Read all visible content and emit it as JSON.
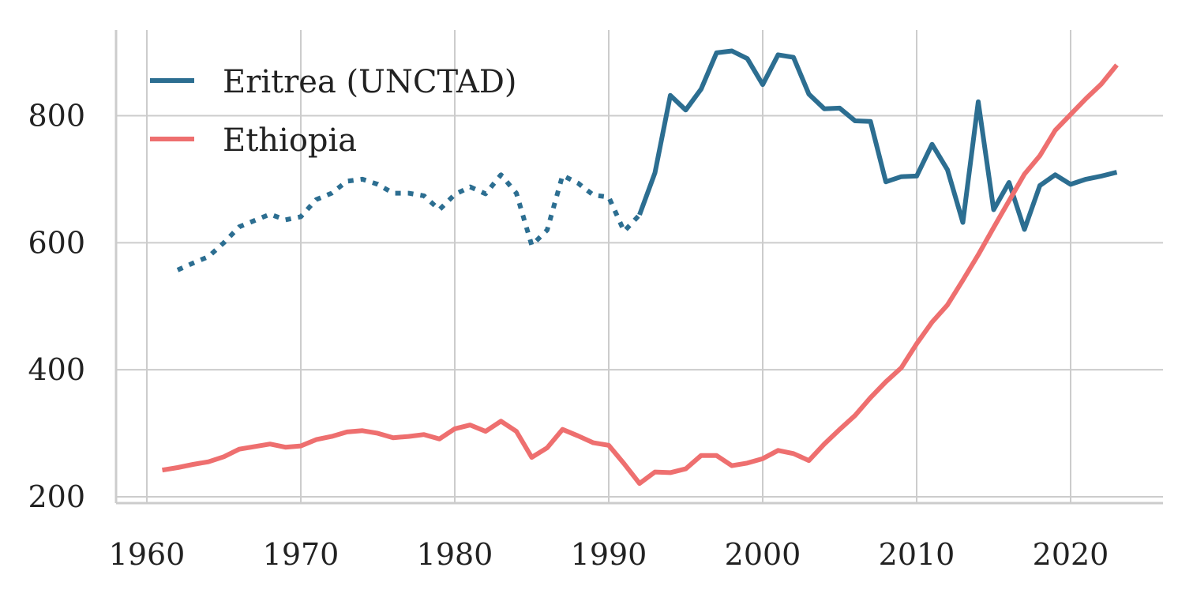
{
  "chart_data": {
    "type": "line",
    "title": "",
    "xlabel": "",
    "ylabel": "",
    "xlim": [
      1958,
      2026
    ],
    "ylim": [
      190,
      935
    ],
    "x_ticks": [
      1960,
      1970,
      1980,
      1990,
      2000,
      2010,
      2020
    ],
    "y_ticks": [
      200,
      400,
      600,
      800
    ],
    "grid": true,
    "legend_position": "top-left",
    "series": [
      {
        "name": "Eritrea (UNCTAD)",
        "color": "#2c6e91",
        "dotted_segment": {
          "x": [
            1962,
            1963,
            1964,
            1965,
            1966,
            1967,
            1968,
            1969,
            1970,
            1971,
            1972,
            1973,
            1974,
            1975,
            1976,
            1977,
            1978,
            1979,
            1980,
            1981,
            1982,
            1983,
            1984,
            1985,
            1986,
            1987,
            1988,
            1989,
            1990,
            1991,
            1992
          ],
          "y": [
            557,
            568,
            578,
            600,
            625,
            635,
            645,
            636,
            641,
            668,
            678,
            697,
            700,
            692,
            678,
            678,
            674,
            652,
            676,
            688,
            677,
            707,
            678,
            596,
            620,
            706,
            694,
            675,
            672,
            618,
            644
          ]
        },
        "solid_segment": {
          "x": [
            1992,
            1993,
            1994,
            1995,
            1996,
            1997,
            1998,
            1999,
            2000,
            2001,
            2002,
            2003,
            2004,
            2005,
            2006,
            2007,
            2008,
            2009,
            2010,
            2011,
            2012,
            2013,
            2014,
            2015,
            2016,
            2017,
            2018,
            2019,
            2020,
            2021,
            2022,
            2023
          ],
          "y": [
            644,
            710,
            832,
            809,
            842,
            899,
            902,
            890,
            849,
            896,
            892,
            834,
            811,
            812,
            792,
            791,
            696,
            704,
            705,
            755,
            715,
            632,
            822,
            652,
            695,
            621,
            690,
            707,
            692,
            700,
            705,
            711
          ]
        }
      },
      {
        "name": "Ethiopia",
        "color": "#ee6f6f",
        "x": [
          1961,
          1962,
          1963,
          1964,
          1965,
          1966,
          1967,
          1968,
          1969,
          1970,
          1971,
          1972,
          1973,
          1974,
          1975,
          1976,
          1977,
          1978,
          1979,
          1980,
          1981,
          1982,
          1983,
          1984,
          1985,
          1986,
          1987,
          1988,
          1989,
          1990,
          1991,
          1992,
          1993,
          1994,
          1995,
          1996,
          1997,
          1998,
          1999,
          2000,
          2001,
          2002,
          2003,
          2004,
          2005,
          2006,
          2007,
          2008,
          2009,
          2010,
          2011,
          2012,
          2013,
          2014,
          2015,
          2016,
          2017,
          2018,
          2019,
          2020,
          2021,
          2022,
          2023
        ],
        "y": [
          242,
          246,
          251,
          255,
          263,
          275,
          279,
          283,
          278,
          280,
          290,
          295,
          302,
          304,
          300,
          293,
          295,
          298,
          291,
          307,
          313,
          303,
          319,
          303,
          262,
          277,
          306,
          296,
          285,
          281,
          252,
          221,
          239,
          238,
          244,
          265,
          265,
          249,
          253,
          260,
          273,
          268,
          257,
          283,
          306,
          328,
          356,
          381,
          403,
          441,
          475,
          502,
          541,
          581,
          624,
          666,
          708,
          737,
          777,
          802,
          827,
          850,
          880
        ]
      }
    ]
  }
}
